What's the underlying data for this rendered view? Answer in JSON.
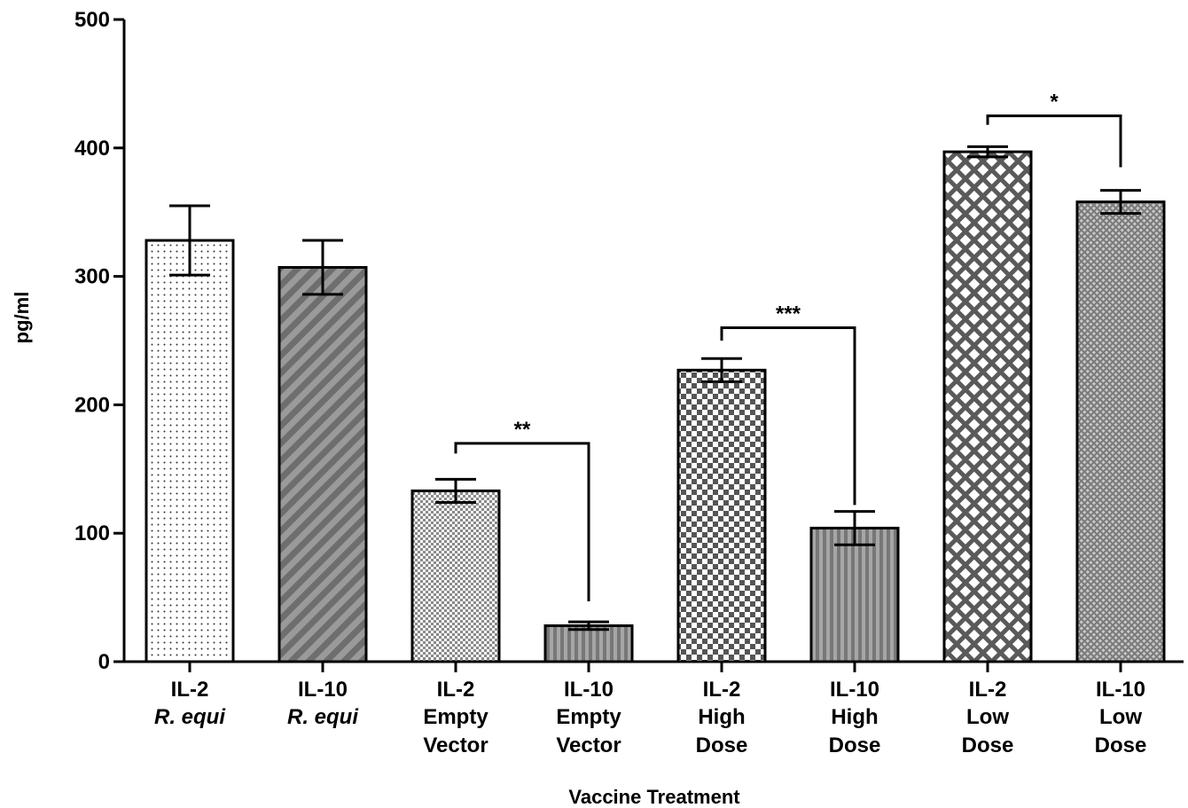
{
  "chart_data": {
    "type": "bar",
    "title": "",
    "xlabel": "Vaccine Treatment",
    "ylabel": "pg/ml",
    "ylim": [
      0,
      500
    ],
    "yticks": [
      0,
      100,
      200,
      300,
      400,
      500
    ],
    "categories": [
      {
        "line1": "IL-2",
        "line2": "R. equi",
        "line3": "",
        "italic2": true
      },
      {
        "line1": "IL-10",
        "line2": "R. equi",
        "line3": "",
        "italic2": true
      },
      {
        "line1": "IL-2",
        "line2": "Empty",
        "line3": "Vector",
        "italic2": false
      },
      {
        "line1": "IL-10",
        "line2": "Empty",
        "line3": "Vector",
        "italic2": false
      },
      {
        "line1": "IL-2",
        "line2": "High",
        "line3": "Dose",
        "italic2": false
      },
      {
        "line1": "IL-10",
        "line2": "High",
        "line3": "Dose",
        "italic2": false
      },
      {
        "line1": "IL-2",
        "line2": "Low",
        "line3": "Dose",
        "italic2": false
      },
      {
        "line1": "IL-10",
        "line2": "Low",
        "line3": "Dose",
        "italic2": false
      }
    ],
    "values": [
      328,
      307,
      133,
      28,
      227,
      104,
      397,
      358
    ],
    "errors": [
      27,
      21,
      9,
      3,
      9,
      13,
      4,
      9
    ],
    "patterns": [
      "dots",
      "diag-stripes",
      "small-check",
      "vert-stripes",
      "checker",
      "vert-stripes",
      "diamond-lattice",
      "fine-grid"
    ],
    "significance": [
      {
        "from": 2,
        "to": 3,
        "label": "**",
        "y": 170,
        "left_end": 162,
        "right_end": 47
      },
      {
        "from": 4,
        "to": 5,
        "label": "***",
        "y": 260,
        "left_end": 250,
        "right_end": 122
      },
      {
        "from": 6,
        "to": 7,
        "label": "*",
        "y": 425,
        "left_end": 418,
        "right_end": 385
      }
    ]
  }
}
